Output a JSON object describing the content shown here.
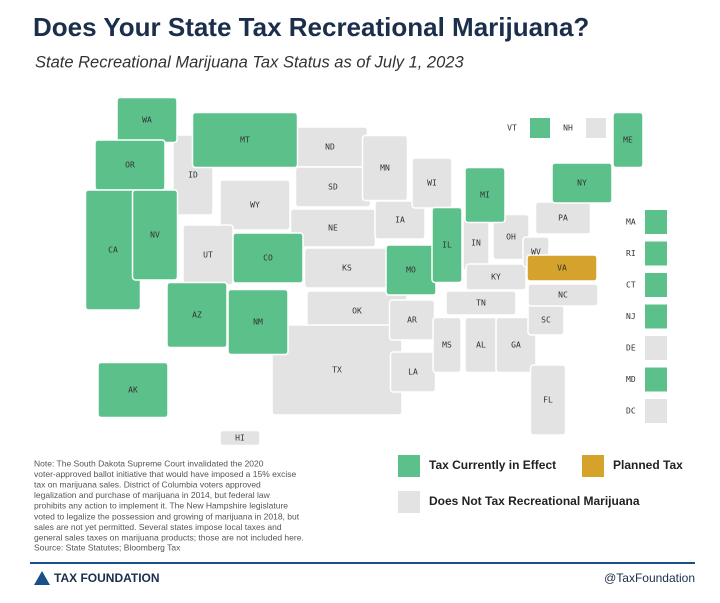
{
  "title": "Does Your State Tax Recreational Marijuana?",
  "subtitle": "State Recreational Marijuana Tax Status as of July 1, 2023",
  "legend": [
    {
      "label": "Tax Currently in Effect",
      "color": "#5cc08a"
    },
    {
      "label": "Planned Tax",
      "color": "#d5a22c"
    },
    {
      "label": "Does Not Tax Recreational Marijuana",
      "color": "#e3e3e3"
    }
  ],
  "states": [
    {
      "label": "WA",
      "status": 0
    },
    {
      "label": "OR",
      "status": 0
    },
    {
      "label": "CA",
      "status": 0
    },
    {
      "label": "NV",
      "status": 0
    },
    {
      "label": "ID",
      "status": 2
    },
    {
      "label": "MT",
      "status": 0
    },
    {
      "label": "WY",
      "status": 2
    },
    {
      "label": "UT",
      "status": 2
    },
    {
      "label": "CO",
      "status": 0
    },
    {
      "label": "AZ",
      "status": 0
    },
    {
      "label": "NM",
      "status": 0
    },
    {
      "label": "ND",
      "status": 2
    },
    {
      "label": "SD",
      "status": 2
    },
    {
      "label": "NE",
      "status": 2
    },
    {
      "label": "KS",
      "status": 2
    },
    {
      "label": "OK",
      "status": 2
    },
    {
      "label": "TX",
      "status": 2
    },
    {
      "label": "MN",
      "status": 2
    },
    {
      "label": "IA",
      "status": 2
    },
    {
      "label": "MO",
      "status": 0
    },
    {
      "label": "AR",
      "status": 2
    },
    {
      "label": "LA",
      "status": 2
    },
    {
      "label": "WI",
      "status": 2
    },
    {
      "label": "IL",
      "status": 0
    },
    {
      "label": "MI",
      "status": 0
    },
    {
      "label": "IN",
      "status": 2
    },
    {
      "label": "OH",
      "status": 2
    },
    {
      "label": "KY",
      "status": 2
    },
    {
      "label": "TN",
      "status": 2
    },
    {
      "label": "MS",
      "status": 2
    },
    {
      "label": "AL",
      "status": 2
    },
    {
      "label": "GA",
      "status": 2
    },
    {
      "label": "FL",
      "status": 2
    },
    {
      "label": "SC",
      "status": 2
    },
    {
      "label": "NC",
      "status": 2
    },
    {
      "label": "VA",
      "status": 1
    },
    {
      "label": "WV",
      "status": 2
    },
    {
      "label": "PA",
      "status": 2
    },
    {
      "label": "NY",
      "status": 0
    },
    {
      "label": "ME",
      "status": 0
    },
    {
      "label": "AK",
      "status": 0
    },
    {
      "label": "HI",
      "status": 2
    }
  ],
  "top_small_states": [
    {
      "label": "VT",
      "status": 0
    },
    {
      "label": "NH",
      "status": 2
    }
  ],
  "side_small_states": [
    {
      "label": "MA",
      "status": 0
    },
    {
      "label": "RI",
      "status": 0
    },
    {
      "label": "CT",
      "status": 0
    },
    {
      "label": "NJ",
      "status": 0
    },
    {
      "label": "DE",
      "status": 2
    },
    {
      "label": "MD",
      "status": 0
    },
    {
      "label": "DC",
      "status": 2
    }
  ],
  "note": [
    "Note: The South Dakota Supreme Court invalidated the 2020",
    "voter-approved ballot initiative that would have imposed a 15% excise",
    "tax on marijuana sales. District of Columbia voters approved",
    "legalization and purchase of marijuana in 2014, but federal law",
    "prohibits any action to implement it. The New Hampshire legislature",
    "voted to legalize the possession and growing of marijuana in 2018, but",
    "sales are not yet permitted. Several states impose local taxes and",
    "general sales taxes on marijuana products; those are not included here."
  ],
  "source": "Source: State Statutes; Bloomberg Tax",
  "footer": {
    "brand": "TAX FOUNDATION",
    "handle": "@TaxFoundation"
  }
}
